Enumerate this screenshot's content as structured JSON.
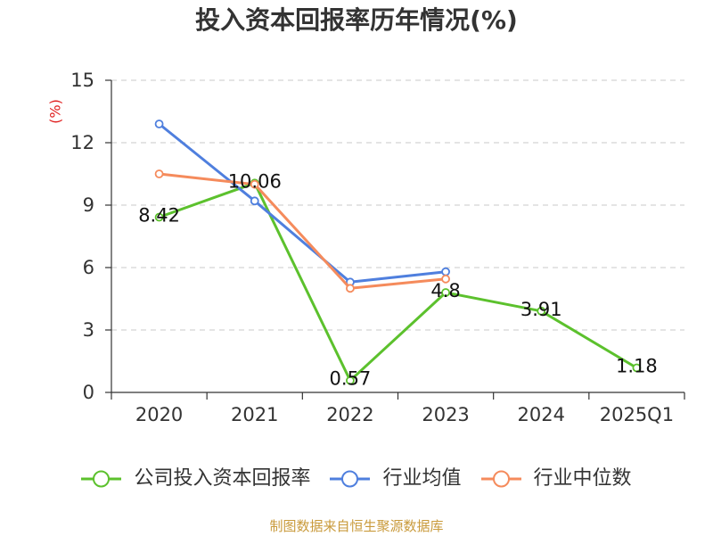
{
  "chart_data": {
    "type": "line",
    "title": "投入资本回报率历年情况(%)",
    "ylabel": "(%)",
    "categories": [
      "2020",
      "2021",
      "2022",
      "2023",
      "2024",
      "2025Q1"
    ],
    "ylim": [
      0,
      15
    ],
    "yticks": [
      0,
      3,
      6,
      9,
      12,
      15
    ],
    "grid": true,
    "legend_position": "bottom",
    "series": [
      {
        "name": "公司投入资本回报率",
        "color": "#5cc12d",
        "show_values": true,
        "values": [
          8.42,
          10.06,
          0.57,
          4.8,
          3.91,
          1.18
        ]
      },
      {
        "name": "行业均值",
        "color": "#4f7fde",
        "show_values": false,
        "values": [
          12.9,
          9.2,
          5.3,
          5.8,
          null,
          null
        ]
      },
      {
        "name": "行业中位数",
        "color": "#f58b5c",
        "show_values": false,
        "values": [
          10.5,
          10.0,
          5.0,
          5.45,
          null,
          null
        ]
      }
    ]
  },
  "source": "制图数据来自恒生聚源数据库",
  "colors": {
    "axis_title": "#e02020",
    "source_text": "#c99a3b"
  }
}
